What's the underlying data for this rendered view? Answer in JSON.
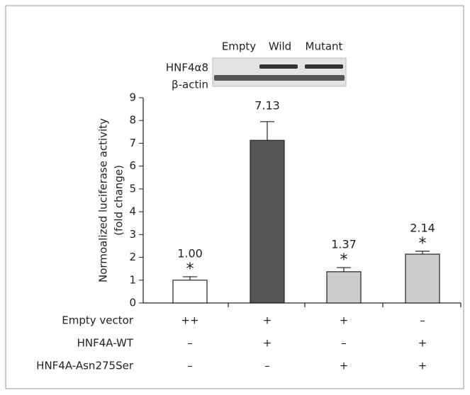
{
  "chart_data": {
    "type": "bar",
    "y_label_lines": [
      "Normoalized luciferase activity",
      "(fold change)"
    ],
    "values": [
      1.0,
      7.13,
      1.37,
      2.14
    ],
    "value_labels": [
      "1.00",
      "7.13",
      "1.37",
      "2.14"
    ],
    "errors": [
      0.15,
      0.82,
      0.18,
      0.13
    ],
    "colors": [
      "#ffffff",
      "#555555",
      "#cccccc",
      "#cccccc"
    ],
    "markers": [
      "*",
      null,
      "*",
      "*"
    ],
    "ylim": [
      0,
      9
    ],
    "yticks": [
      0,
      1,
      2,
      3,
      4,
      5,
      6,
      7,
      8,
      9
    ],
    "blot": {
      "lanes": [
        "Empty",
        "Wild",
        "Mutant"
      ],
      "rows": [
        "HNF4α8",
        "β-actin"
      ]
    },
    "conditions": [
      {
        "label": "Empty vector",
        "values": [
          "++",
          "+",
          "+",
          "–"
        ]
      },
      {
        "label": "HNF4A-WT",
        "values": [
          "–",
          "+",
          "–",
          "+"
        ]
      },
      {
        "label": "HNF4A-Asn275Ser",
        "values": [
          "–",
          "–",
          "+",
          "+"
        ]
      }
    ]
  }
}
